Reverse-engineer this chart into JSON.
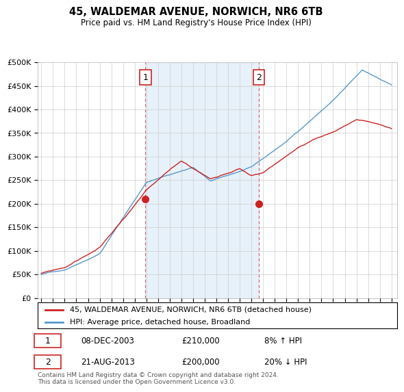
{
  "title": "45, WALDEMAR AVENUE, NORWICH, NR6 6TB",
  "subtitle": "Price paid vs. HM Land Registry's House Price Index (HPI)",
  "ylim": [
    0,
    500000
  ],
  "yticks": [
    0,
    50000,
    100000,
    150000,
    200000,
    250000,
    300000,
    350000,
    400000,
    450000,
    500000
  ],
  "ytick_labels": [
    "£0",
    "£50K",
    "£100K",
    "£150K",
    "£200K",
    "£250K",
    "£300K",
    "£350K",
    "£400K",
    "£450K",
    "£500K"
  ],
  "background_color": "#ffffff",
  "grid_color": "#cccccc",
  "hpi_color": "#5599cc",
  "hpi_fill_color": "#d0e4f5",
  "price_color": "#cc2222",
  "sale1_x": 2003.92,
  "sale1_price": 210000,
  "sale1_label": "1",
  "sale2_x": 2013.64,
  "sale2_price": 200000,
  "sale2_label": "2",
  "footer": "Contains HM Land Registry data © Crown copyright and database right 2024.\nThis data is licensed under the Open Government Licence v3.0.",
  "legend_line1": "45, WALDEMAR AVENUE, NORWICH, NR6 6TB (detached house)",
  "legend_line2": "HPI: Average price, detached house, Broadland",
  "table_row1": [
    "1",
    "08-DEC-2003",
    "£210,000",
    "8% ↑ HPI"
  ],
  "table_row2": [
    "2",
    "21-AUG-2013",
    "£200,000",
    "20% ↓ HPI"
  ]
}
